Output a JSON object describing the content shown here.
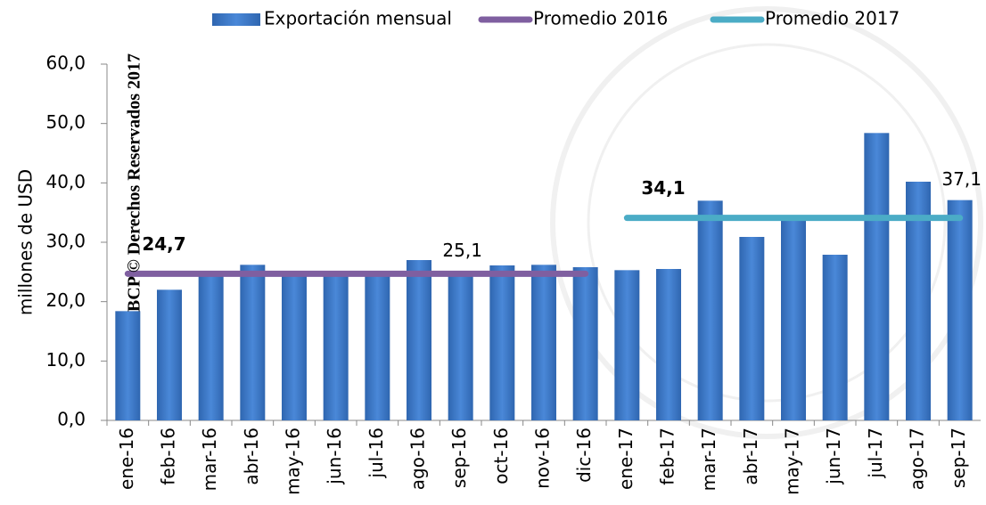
{
  "chart_data": {
    "type": "bar",
    "watermark": "BCP © Derechos Reservados 2017",
    "y_label": "millones de USD",
    "categories": [
      "ene-16",
      "feb-16",
      "mar-16",
      "abr-16",
      "may-16",
      "jun-16",
      "jul-16",
      "ago-16",
      "sep-16",
      "oct-16",
      "nov-16",
      "dic-16",
      "ene-17",
      "feb-17",
      "mar-17",
      "abr-17",
      "may-17",
      "jun-17",
      "jul-17",
      "ago-17",
      "sep-17"
    ],
    "series": [
      {
        "name": "Exportación mensual",
        "type": "bar",
        "color": "#3a78c9",
        "values": [
          18.4,
          22.0,
          25.0,
          26.2,
          24.6,
          24.5,
          24.3,
          27.0,
          25.1,
          26.1,
          26.2,
          25.8,
          25.3,
          25.5,
          37.0,
          30.9,
          34.5,
          27.9,
          48.4,
          40.2,
          37.1
        ],
        "value_labels": [
          null,
          null,
          null,
          null,
          null,
          null,
          null,
          null,
          "25,1",
          null,
          null,
          null,
          null,
          null,
          null,
          null,
          null,
          null,
          null,
          null,
          "37,1"
        ]
      },
      {
        "name": "Promedio 2016",
        "type": "line",
        "color": "#7f5fa0",
        "values": [
          24.7,
          24.7,
          24.7,
          24.7,
          24.7,
          24.7,
          24.7,
          24.7,
          24.7,
          24.7,
          24.7,
          24.7,
          null,
          null,
          null,
          null,
          null,
          null,
          null,
          null,
          null
        ],
        "value_labels": [
          "24,7",
          null,
          null,
          null,
          null,
          null,
          null,
          null,
          null,
          null,
          null,
          null,
          null,
          null,
          null,
          null,
          null,
          null,
          null,
          null,
          null
        ]
      },
      {
        "name": "Promedio 2017",
        "type": "line",
        "color": "#4bacc6",
        "values": [
          null,
          null,
          null,
          null,
          null,
          null,
          null,
          null,
          null,
          null,
          null,
          null,
          34.1,
          34.1,
          34.1,
          34.1,
          34.1,
          34.1,
          34.1,
          34.1,
          34.1
        ],
        "value_labels": [
          null,
          null,
          null,
          null,
          null,
          null,
          null,
          null,
          null,
          null,
          null,
          null,
          "34,1",
          null,
          null,
          null,
          null,
          null,
          null,
          null,
          null
        ]
      }
    ],
    "ylim": [
      0,
      60
    ],
    "yticks": [
      {
        "value": 0,
        "label": "0,0"
      },
      {
        "value": 10,
        "label": "10,0"
      },
      {
        "value": 20,
        "label": "20,0"
      },
      {
        "value": 30,
        "label": "30,0"
      },
      {
        "value": 40,
        "label": "40,0"
      },
      {
        "value": 50,
        "label": "50,0"
      },
      {
        "value": 60,
        "label": "60,0"
      }
    ],
    "legend": "top"
  }
}
